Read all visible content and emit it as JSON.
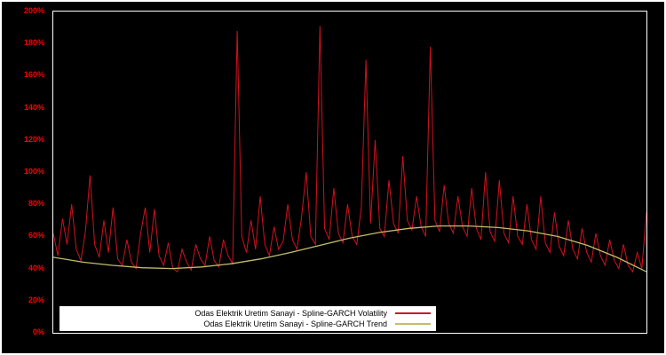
{
  "chart_data": {
    "type": "line",
    "title": "",
    "xlabel": "",
    "ylabel": "",
    "ylim": [
      0,
      200
    ],
    "yticks": [
      "0%",
      "20%",
      "40%",
      "60%",
      "80%",
      "100%",
      "120%",
      "140%",
      "160%",
      "180%",
      "200%"
    ],
    "grid": false,
    "background_color": "#000000",
    "axis_label_color": "#ff0000",
    "legend_position": "bottom-left",
    "series": [
      {
        "name": "Odas Elektrik Uretim Sanayi - Spline-GARCH Volatility",
        "color": "#d0121f",
        "unit": "%",
        "values": [
          62,
          48,
          71,
          55,
          80,
          52,
          45,
          63,
          98,
          55,
          47,
          70,
          50,
          78,
          46,
          42,
          58,
          44,
          40,
          62,
          78,
          50,
          77,
          48,
          42,
          56,
          40,
          38,
          52,
          44,
          39,
          55,
          46,
          42,
          60,
          45,
          41,
          58,
          48,
          43,
          188,
          60,
          50,
          70,
          52,
          85,
          55,
          48,
          66,
          52,
          57,
          80,
          58,
          52,
          72,
          100,
          60,
          55,
          191,
          65,
          58,
          90,
          62,
          56,
          80,
          60,
          55,
          78,
          170,
          68,
          120,
          65,
          60,
          95,
          68,
          62,
          110,
          70,
          64,
          85,
          66,
          60,
          178,
          70,
          63,
          92,
          68,
          62,
          85,
          66,
          60,
          90,
          65,
          58,
          100,
          63,
          57,
          95,
          62,
          56,
          85,
          60,
          55,
          80,
          58,
          52,
          85,
          56,
          50,
          75,
          54,
          48,
          70,
          52,
          46,
          65,
          50,
          44,
          62,
          48,
          42,
          58,
          45,
          40,
          55,
          42,
          38,
          50,
          40,
          75
        ]
      },
      {
        "name": "Odas Elektrik Uretim Sanayi - Spline-GARCH Trend",
        "color": "#c3bd6b",
        "unit": "%",
        "values": [
          47,
          44,
          42,
          40.5,
          40,
          41,
          43,
          46,
          50,
          54.5,
          59,
          62.5,
          65,
          66.5,
          66.5,
          65.5,
          63.5,
          60,
          54.5,
          47,
          38
        ]
      }
    ]
  },
  "legend": {
    "items": [
      {
        "label": "Odas Elektrik Uretim Sanayi - Spline-GARCH Volatility"
      },
      {
        "label": "Odas Elektrik Uretim Sanayi - Spline-GARCH Trend"
      }
    ]
  }
}
